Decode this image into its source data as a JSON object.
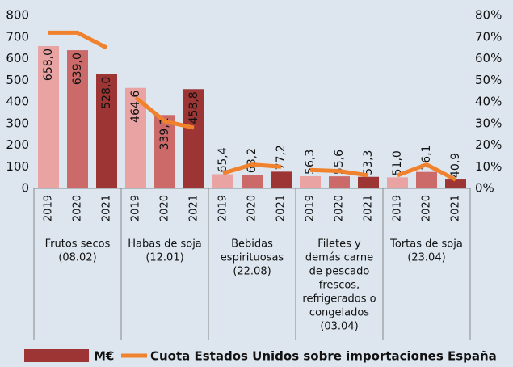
{
  "chart_data": {
    "type": "bar",
    "categories": [
      "2019",
      "2020",
      "2021",
      "2019",
      "2020",
      "2021",
      "2019",
      "2020",
      "2021",
      "2019",
      "2020",
      "2021",
      "2019",
      "2020",
      "2021"
    ],
    "groups": [
      [
        "Frutos secos",
        "(08.02)"
      ],
      [
        "Habas de soja",
        "(12.01)"
      ],
      [
        "Bebidas",
        "espirituosas",
        "(22.08)"
      ],
      [
        "Filetes y",
        "demás carne",
        "de pescado",
        "frescos,",
        "refrigerados o",
        "congelados",
        "(03.04)"
      ],
      [
        "Tortas de soja",
        "(23.04)"
      ]
    ],
    "year_colors": [
      "#e9a3a3",
      "#cc6a6a",
      "#9e3535"
    ],
    "series": [
      {
        "name": "M€",
        "color": "#9e3535",
        "values": [
          658.0,
          639.0,
          528.0,
          464.6,
          339.1,
          458.8,
          65.4,
          63.2,
          77.2,
          56.3,
          55.6,
          53.3,
          51.0,
          76.1,
          40.9
        ],
        "value_labels": [
          "658,0",
          "639,0",
          "528,0",
          "464,6",
          "339,1",
          "458,8",
          "65,4",
          "63,2",
          "77,2",
          "56,3",
          "55,6",
          "53,3",
          "51,0",
          "76,1",
          "40,9"
        ]
      },
      {
        "name": "Cuota Estados Unidos sobre importaciones España",
        "color": "#f0822e",
        "axis": "y2",
        "values": [
          72,
          72,
          65,
          42,
          31,
          28,
          7,
          11,
          10,
          8.5,
          8,
          6,
          6,
          11,
          4
        ]
      }
    ],
    "ylim": [
      0,
      800
    ],
    "yticks": [
      0,
      100,
      200,
      300,
      400,
      500,
      600,
      700,
      800
    ],
    "y2lim": [
      0,
      80
    ],
    "y2ticks": [
      {
        "value": 0,
        "label": "0%"
      },
      {
        "value": 10,
        "label": "10%"
      },
      {
        "value": 20,
        "label": "20%"
      },
      {
        "value": 30,
        "label": "30%"
      },
      {
        "value": 40,
        "label": "40%"
      },
      {
        "value": 50,
        "label": "50%"
      },
      {
        "value": 60,
        "label": "60%"
      },
      {
        "value": 70,
        "label": "70%"
      },
      {
        "value": 80,
        "label": "80%"
      }
    ]
  }
}
